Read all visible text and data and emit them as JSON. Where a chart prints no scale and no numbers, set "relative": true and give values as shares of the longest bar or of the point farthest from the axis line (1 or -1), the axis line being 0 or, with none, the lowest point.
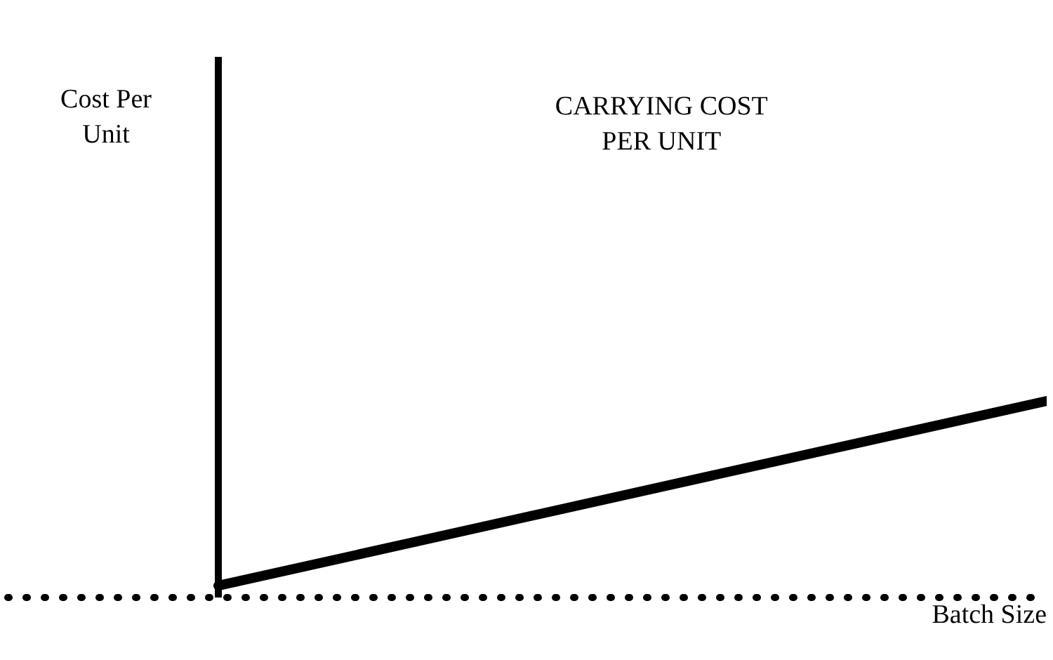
{
  "chart_data": {
    "type": "line",
    "title": "CARRYING COST\nPER UNIT",
    "xlabel": "Batch Size",
    "annotations": [
      "Cost Per\nUnit"
    ],
    "relative": true,
    "categories": [
      null,
      null
    ],
    "series": [
      {
        "color": "#000000",
        "values": [
          0.06,
          1
        ]
      }
    ],
    "marker": "none",
    "line_style": "solid"
  }
}
